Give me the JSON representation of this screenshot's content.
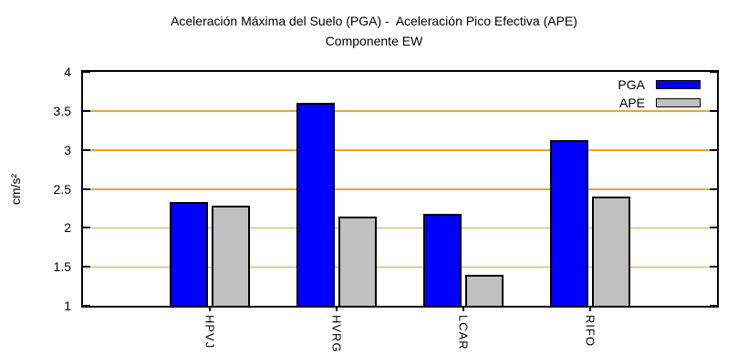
{
  "title": "Aceleración Máxima del Suelo (PGA) -  Aceleración Pico Efectiva (APE)",
  "subtitle": "Componente EW",
  "chart_data": {
    "type": "bar",
    "categories": [
      "HPVJ",
      "HVRG",
      "LCAR",
      "RIFO"
    ],
    "series": [
      {
        "name": "PGA",
        "color": "#0000ff",
        "values": [
          2.33,
          3.6,
          2.18,
          3.12
        ]
      },
      {
        "name": "APE",
        "color": "#c0c0c0",
        "values": [
          2.28,
          2.14,
          1.4,
          2.4
        ]
      }
    ],
    "xlabel": "",
    "ylabel": "cm/s²",
    "ylim": [
      1,
      4
    ],
    "yticks": [
      1,
      1.5,
      2,
      2.5,
      3,
      3.5,
      4
    ],
    "grid": true,
    "grid_color": "#eda233",
    "legend_position": "top-right",
    "border_color": "#000000",
    "background": "#ffffff"
  }
}
